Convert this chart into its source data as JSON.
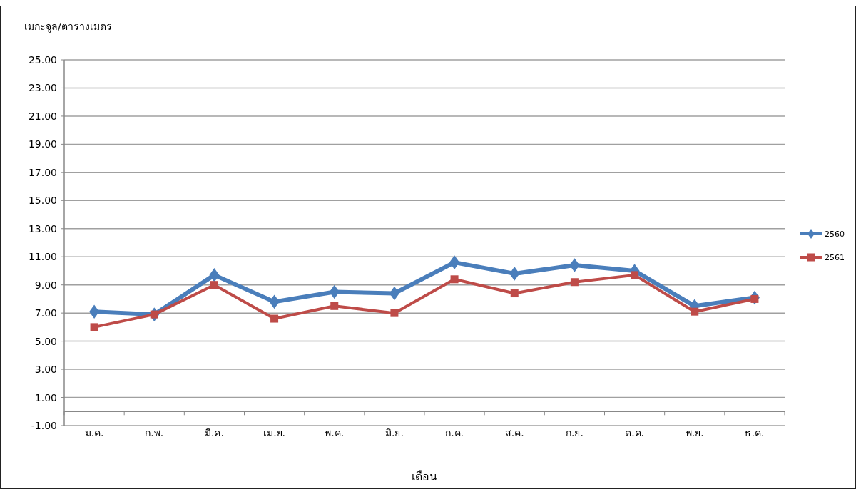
{
  "chart_data": {
    "type": "line",
    "ylabel": "เมกะจูล/ตารางเมตร",
    "xlabel": "เดือน",
    "categories": [
      "ม.ค.",
      "ก.พ.",
      "มี.ค.",
      "เม.ย.",
      "พ.ค.",
      "มิ.ย.",
      "ก.ค.",
      "ส.ค.",
      "ก.ย.",
      "ต.ค.",
      "พ.ย.",
      "ธ.ค."
    ],
    "series": [
      {
        "name": "2560",
        "color": "#4a7ebb",
        "marker": "diamond",
        "values": [
          7.1,
          6.9,
          9.7,
          7.8,
          8.5,
          8.4,
          10.6,
          9.8,
          10.4,
          10.0,
          7.5,
          8.1
        ]
      },
      {
        "name": "2561",
        "color": "#be4b48",
        "marker": "square",
        "values": [
          6.0,
          6.9,
          9.0,
          6.6,
          7.5,
          7.0,
          9.4,
          8.4,
          9.2,
          9.7,
          7.1,
          8.0
        ]
      }
    ],
    "ylim": [
      -1,
      25
    ],
    "yticks": [
      {
        "value": -1,
        "label": "-1.00"
      },
      {
        "value": 1,
        "label": "1.00"
      },
      {
        "value": 3,
        "label": "3.00"
      },
      {
        "value": 5,
        "label": "5.00"
      },
      {
        "value": 7,
        "label": "7.00"
      },
      {
        "value": 9,
        "label": "9.00"
      },
      {
        "value": 11,
        "label": "11.00"
      },
      {
        "value": 13,
        "label": "13.00"
      },
      {
        "value": 15,
        "label": "15.00"
      },
      {
        "value": 17,
        "label": "17.00"
      },
      {
        "value": 19,
        "label": "19.00"
      },
      {
        "value": 21,
        "label": "21.00"
      },
      {
        "value": 23,
        "label": "23.00"
      },
      {
        "value": 25,
        "label": "25.00"
      }
    ],
    "grid": "y",
    "legend": "right",
    "line_style": "solid"
  }
}
